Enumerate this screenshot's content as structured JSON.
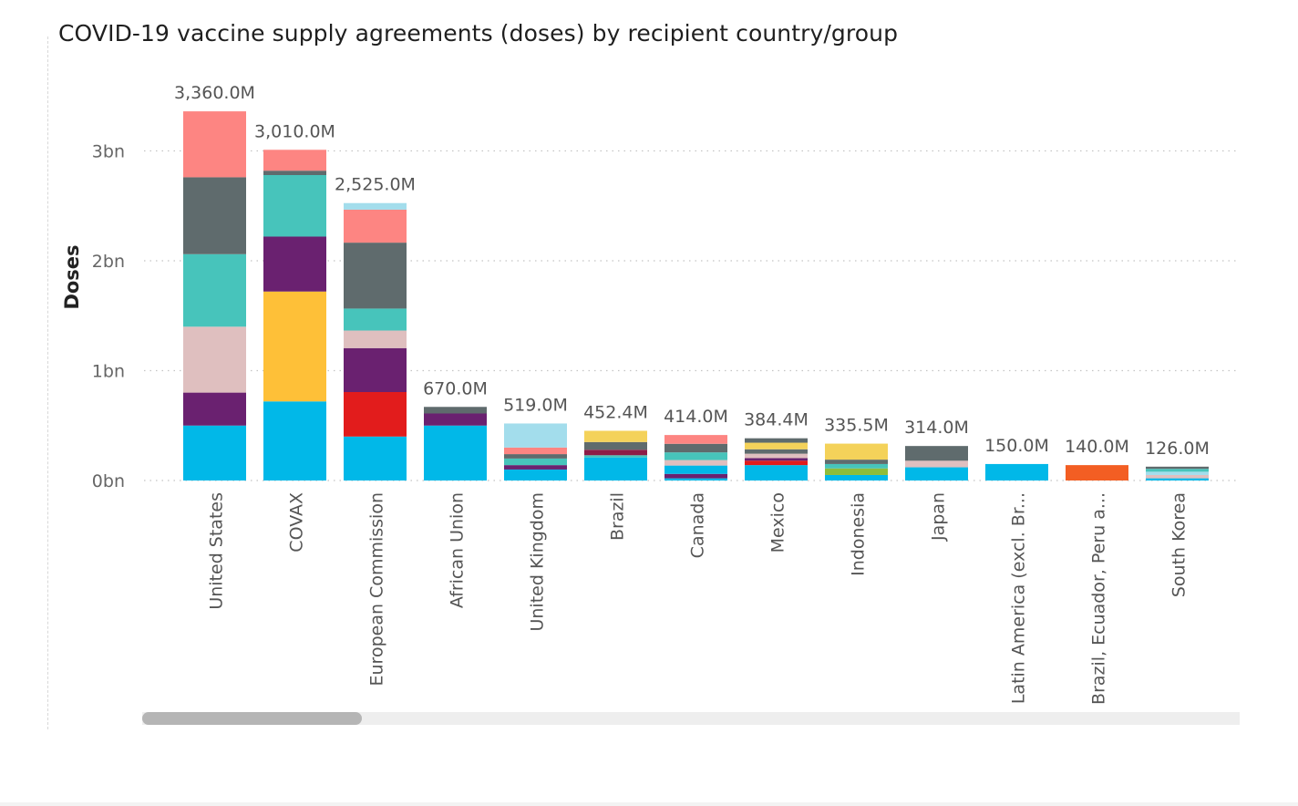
{
  "colors": {
    "blue": "#01B8E8",
    "red": "#E21C1C",
    "purple": "#6A2170",
    "pink_light": "#DFBFBF",
    "teal": "#47C4BB",
    "dark_gray": "#5F6B6D",
    "salmon": "#FD8582",
    "yellow": "#FEC038",
    "light_blue": "#A3DDEC",
    "maroon": "#8D1D47",
    "gold": "#F4D25A",
    "lime": "#8FBD3A",
    "orange": "#F35E23"
  },
  "chart_data": {
    "type": "bar",
    "stacked": true,
    "title": "COVID-19 vaccine supply agreements (doses) by recipient country/group",
    "xlabel": "",
    "ylabel": "Doses",
    "ylim": [
      0,
      3600000000
    ],
    "yticks": [
      0,
      1000000000,
      2000000000,
      3000000000
    ],
    "ytick_labels": [
      "0bn",
      "1bn",
      "2bn",
      "3bn"
    ],
    "grid": true,
    "categories": [
      "United States",
      "COVAX",
      "European Commission",
      "African Union",
      "United Kingdom",
      "Brazil",
      "Canada",
      "Mexico",
      "Indonesia",
      "Japan",
      "Latin America (excl. Br...",
      "Brazil, Ecuador, Peru a...",
      "South Korea"
    ],
    "total_labels": [
      "3,360.0M",
      "3,010.0M",
      "2,525.0M",
      "670.0M",
      "519.0M",
      "452.4M",
      "414.0M",
      "384.4M",
      "335.5M",
      "314.0M",
      "150.0M",
      "140.0M",
      "126.0M"
    ],
    "totals_millions": [
      3360.0,
      3010.0,
      2525.0,
      670.0,
      519.0,
      452.4,
      414.0,
      384.4,
      335.5,
      314.0,
      150.0,
      140.0,
      126.0
    ],
    "segments_millions": [
      [
        {
          "c": "blue",
          "v": 500
        },
        {
          "c": "purple",
          "v": 300
        },
        {
          "c": "pink_light",
          "v": 600
        },
        {
          "c": "teal",
          "v": 660
        },
        {
          "c": "dark_gray",
          "v": 700
        },
        {
          "c": "salmon",
          "v": 600
        }
      ],
      [
        {
          "c": "blue",
          "v": 720
        },
        {
          "c": "yellow",
          "v": 1000
        },
        {
          "c": "purple",
          "v": 500
        },
        {
          "c": "teal",
          "v": 560
        },
        {
          "c": "dark_gray",
          "v": 40
        },
        {
          "c": "salmon",
          "v": 190
        }
      ],
      [
        {
          "c": "blue",
          "v": 400
        },
        {
          "c": "red",
          "v": 405
        },
        {
          "c": "purple",
          "v": 400
        },
        {
          "c": "pink_light",
          "v": 160
        },
        {
          "c": "teal",
          "v": 200
        },
        {
          "c": "dark_gray",
          "v": 600
        },
        {
          "c": "salmon",
          "v": 300
        },
        {
          "c": "light_blue",
          "v": 60
        }
      ],
      [
        {
          "c": "blue",
          "v": 500
        },
        {
          "c": "purple",
          "v": 110
        },
        {
          "c": "dark_gray",
          "v": 60
        }
      ],
      [
        {
          "c": "blue",
          "v": 100
        },
        {
          "c": "purple",
          "v": 40
        },
        {
          "c": "teal",
          "v": 60
        },
        {
          "c": "dark_gray",
          "v": 40
        },
        {
          "c": "salmon",
          "v": 60
        },
        {
          "c": "light_blue",
          "v": 219
        }
      ],
      [
        {
          "c": "blue",
          "v": 210
        },
        {
          "c": "teal",
          "v": 20
        },
        {
          "c": "maroon",
          "v": 50
        },
        {
          "c": "dark_gray",
          "v": 70
        },
        {
          "c": "gold",
          "v": 102.4
        }
      ],
      [
        {
          "c": "blue",
          "v": 20
        },
        {
          "c": "purple",
          "v": 40
        },
        {
          "c": "blue",
          "v": 76
        },
        {
          "c": "pink_light",
          "v": 50
        },
        {
          "c": "teal",
          "v": 70
        },
        {
          "c": "dark_gray",
          "v": 78
        },
        {
          "c": "salmon",
          "v": 80
        }
      ],
      [
        {
          "c": "blue",
          "v": 140
        },
        {
          "c": "red",
          "v": 40
        },
        {
          "c": "purple",
          "v": 24
        },
        {
          "c": "pink_light",
          "v": 40
        },
        {
          "c": "dark_gray",
          "v": 40
        },
        {
          "c": "gold",
          "v": 60
        },
        {
          "c": "dark_gray",
          "v": 40.4
        }
      ],
      [
        {
          "c": "blue",
          "v": 50
        },
        {
          "c": "lime",
          "v": 60
        },
        {
          "c": "teal",
          "v": 40
        },
        {
          "c": "dark_gray",
          "v": 40
        },
        {
          "c": "gold",
          "v": 145.5
        }
      ],
      [
        {
          "c": "blue",
          "v": 120
        },
        {
          "c": "pink_light",
          "v": 60
        },
        {
          "c": "dark_gray",
          "v": 134
        }
      ],
      [
        {
          "c": "blue",
          "v": 150
        }
      ],
      [
        {
          "c": "orange",
          "v": 140
        }
      ],
      [
        {
          "c": "blue",
          "v": 20
        },
        {
          "c": "pink_light",
          "v": 30
        },
        {
          "c": "light_blue",
          "v": 30
        },
        {
          "c": "teal",
          "v": 26
        },
        {
          "c": "dark_gray",
          "v": 20
        }
      ]
    ]
  }
}
